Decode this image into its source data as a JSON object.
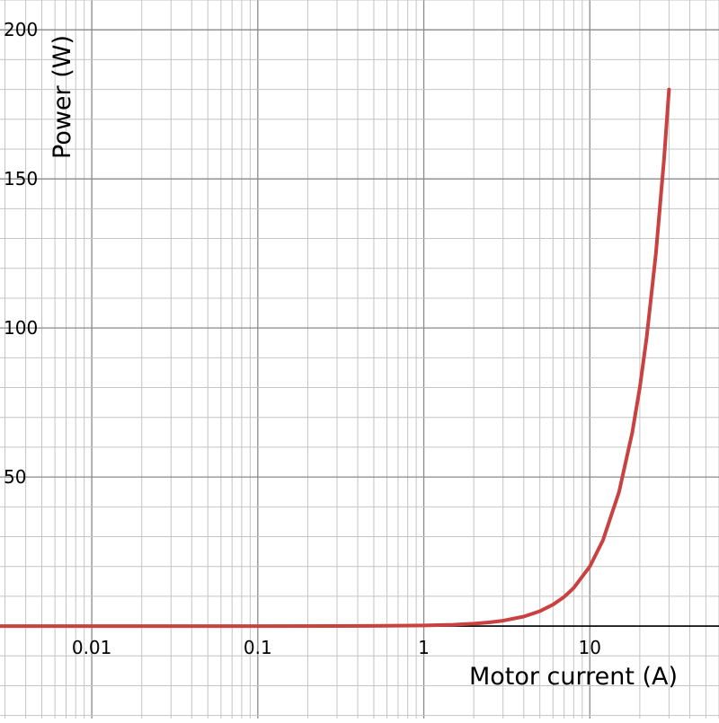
{
  "chart_data": {
    "type": "line",
    "title": "",
    "xlabel": "Motor current (A)",
    "ylabel": "Power (W)",
    "x_scale": "log",
    "y_scale": "linear",
    "xlim": [
      0.0028,
      60
    ],
    "ylim": [
      -31,
      210
    ],
    "grid": true,
    "x_ticks": [
      {
        "value": 0.01,
        "label": "0.01"
      },
      {
        "value": 0.1,
        "label": "0.1"
      },
      {
        "value": 1,
        "label": "1"
      },
      {
        "value": 10,
        "label": "10"
      }
    ],
    "y_ticks": [
      {
        "value": 50,
        "label": "50"
      },
      {
        "value": 100,
        "label": "100"
      },
      {
        "value": 150,
        "label": "150"
      },
      {
        "value": 200,
        "label": "200"
      }
    ],
    "series": [
      {
        "color": "#c94140",
        "x": [
          0.0028,
          0.01,
          0.1,
          0.5,
          1,
          1.5,
          2,
          2.5,
          3,
          4,
          5,
          6,
          7,
          8,
          10,
          12,
          15,
          18,
          20,
          22,
          25,
          28,
          30
        ],
        "y": [
          0,
          0,
          0,
          0.05,
          0.2,
          0.45,
          0.8,
          1.25,
          1.8,
          3.2,
          5,
          7.2,
          9.8,
          12.8,
          20,
          28.8,
          45,
          64.8,
          80,
          96.8,
          125,
          156.8,
          180
        ]
      }
    ]
  }
}
